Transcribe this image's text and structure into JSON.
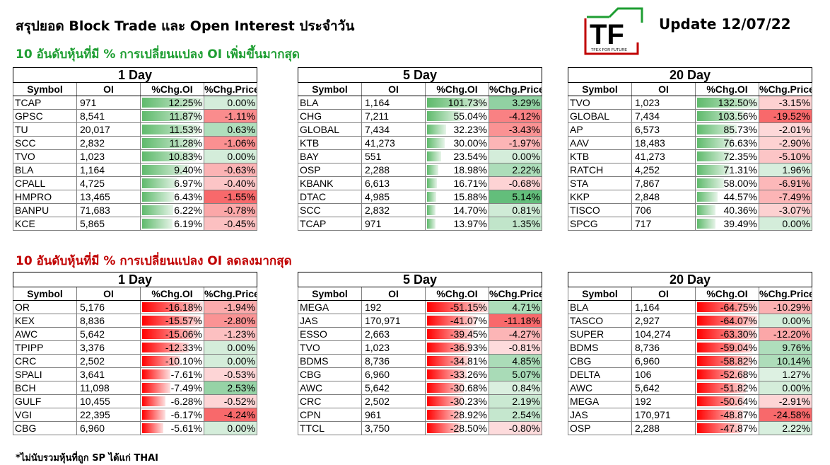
{
  "header": {
    "title": "สรุปยอด Block Trade และ Open Interest ประจำวัน",
    "update": "Update 12/07/22",
    "logo_letters": "TF",
    "logo_tagline": "TFEX FOR FUTURE"
  },
  "sections": {
    "increase_title": "10 อันดับหุ้นที่มี % การเปลี่ยนแปลง OI เพิ่มขึ้นมากสุด",
    "decrease_title": "10 อันดับหุ้นที่มี % การเปลี่ยนแปลง OI ลดลงมากสุด"
  },
  "footnote": "*ไม่นับรวมหุ้นที่ถูก SP ได้แก่ THAI",
  "colors": {
    "increase": "#1e9e32",
    "decrease": "#c00000",
    "bar_positive": "#5fba6c",
    "bar_negative": "#ff0000",
    "price_up": "#63be7b",
    "price_down": "#f8696b"
  },
  "columns": [
    "Symbol",
    "OI",
    "%Chg.OI",
    "%Chg.Price"
  ],
  "tables": [
    {
      "period": "1 Day",
      "group": "increase",
      "rows": [
        {
          "symbol": "TCAP",
          "oi": "971",
          "chg_oi": "12.25%",
          "chg_price": "0.00%",
          "oi_pct": 12.25,
          "price_pct": 0.0
        },
        {
          "symbol": "GPSC",
          "oi": "8,541",
          "chg_oi": "11.87%",
          "chg_price": "-1.11%",
          "oi_pct": 11.87,
          "price_pct": -1.11
        },
        {
          "symbol": "TU",
          "oi": "20,017",
          "chg_oi": "11.53%",
          "chg_price": "0.63%",
          "oi_pct": 11.53,
          "price_pct": 0.63
        },
        {
          "symbol": "SCC",
          "oi": "2,832",
          "chg_oi": "11.28%",
          "chg_price": "-1.06%",
          "oi_pct": 11.28,
          "price_pct": -1.06
        },
        {
          "symbol": "TVO",
          "oi": "1,023",
          "chg_oi": "10.83%",
          "chg_price": "0.00%",
          "oi_pct": 10.83,
          "price_pct": 0.0
        },
        {
          "symbol": "BLA",
          "oi": "1,164",
          "chg_oi": "9.40%",
          "chg_price": "-0.63%",
          "oi_pct": 9.4,
          "price_pct": -0.63
        },
        {
          "symbol": "CPALL",
          "oi": "4,725",
          "chg_oi": "6.97%",
          "chg_price": "-0.40%",
          "oi_pct": 6.97,
          "price_pct": -0.4
        },
        {
          "symbol": "HMPRO",
          "oi": "13,465",
          "chg_oi": "6.43%",
          "chg_price": "-1.55%",
          "oi_pct": 6.43,
          "price_pct": -1.55
        },
        {
          "symbol": "BANPU",
          "oi": "71,683",
          "chg_oi": "6.22%",
          "chg_price": "-0.78%",
          "oi_pct": 6.22,
          "price_pct": -0.78
        },
        {
          "symbol": "KCE",
          "oi": "5,865",
          "chg_oi": "6.19%",
          "chg_price": "-0.45%",
          "oi_pct": 6.19,
          "price_pct": -0.45
        }
      ]
    },
    {
      "period": "5 Day",
      "group": "increase",
      "rows": [
        {
          "symbol": "BLA",
          "oi": "1,164",
          "chg_oi": "101.73%",
          "chg_price": "3.29%",
          "oi_pct": 101.73,
          "price_pct": 3.29
        },
        {
          "symbol": "CHG",
          "oi": "7,211",
          "chg_oi": "55.04%",
          "chg_price": "-4.12%",
          "oi_pct": 55.04,
          "price_pct": -4.12
        },
        {
          "symbol": "GLOBAL",
          "oi": "7,434",
          "chg_oi": "32.23%",
          "chg_price": "-3.43%",
          "oi_pct": 32.23,
          "price_pct": -3.43
        },
        {
          "symbol": "KTB",
          "oi": "41,273",
          "chg_oi": "30.00%",
          "chg_price": "-1.97%",
          "oi_pct": 30.0,
          "price_pct": -1.97
        },
        {
          "symbol": "BAY",
          "oi": "551",
          "chg_oi": "23.54%",
          "chg_price": "0.00%",
          "oi_pct": 23.54,
          "price_pct": 0.0
        },
        {
          "symbol": "OSP",
          "oi": "2,288",
          "chg_oi": "18.98%",
          "chg_price": "2.22%",
          "oi_pct": 18.98,
          "price_pct": 2.22
        },
        {
          "symbol": "KBANK",
          "oi": "6,613",
          "chg_oi": "16.71%",
          "chg_price": "-0.68%",
          "oi_pct": 16.71,
          "price_pct": -0.68
        },
        {
          "symbol": "DTAC",
          "oi": "4,985",
          "chg_oi": "15.88%",
          "chg_price": "5.14%",
          "oi_pct": 15.88,
          "price_pct": 5.14
        },
        {
          "symbol": "SCC",
          "oi": "2,832",
          "chg_oi": "14.70%",
          "chg_price": "0.81%",
          "oi_pct": 14.7,
          "price_pct": 0.81
        },
        {
          "symbol": "TCAP",
          "oi": "971",
          "chg_oi": "13.97%",
          "chg_price": "1.35%",
          "oi_pct": 13.97,
          "price_pct": 1.35
        }
      ]
    },
    {
      "period": "20 Day",
      "group": "increase",
      "rows": [
        {
          "symbol": "TVO",
          "oi": "1,023",
          "chg_oi": "132.50%",
          "chg_price": "-3.15%",
          "oi_pct": 132.5,
          "price_pct": -3.15
        },
        {
          "symbol": "GLOBAL",
          "oi": "7,434",
          "chg_oi": "103.56%",
          "chg_price": "-19.52%",
          "oi_pct": 103.56,
          "price_pct": -19.52
        },
        {
          "symbol": "AP",
          "oi": "6,573",
          "chg_oi": "85.73%",
          "chg_price": "-2.01%",
          "oi_pct": 85.73,
          "price_pct": -2.01
        },
        {
          "symbol": "AAV",
          "oi": "18,483",
          "chg_oi": "76.63%",
          "chg_price": "-2.90%",
          "oi_pct": 76.63,
          "price_pct": -2.9
        },
        {
          "symbol": "KTB",
          "oi": "41,273",
          "chg_oi": "72.35%",
          "chg_price": "-5.10%",
          "oi_pct": 72.35,
          "price_pct": -5.1
        },
        {
          "symbol": "RATCH",
          "oi": "4,252",
          "chg_oi": "71.31%",
          "chg_price": "1.96%",
          "oi_pct": 71.31,
          "price_pct": 1.96
        },
        {
          "symbol": "STA",
          "oi": "7,867",
          "chg_oi": "58.00%",
          "chg_price": "-6.91%",
          "oi_pct": 58.0,
          "price_pct": -6.91
        },
        {
          "symbol": "KKP",
          "oi": "2,848",
          "chg_oi": "44.57%",
          "chg_price": "-7.49%",
          "oi_pct": 44.57,
          "price_pct": -7.49
        },
        {
          "symbol": "TISCO",
          "oi": "706",
          "chg_oi": "40.36%",
          "chg_price": "-3.07%",
          "oi_pct": 40.36,
          "price_pct": -3.07
        },
        {
          "symbol": "SPCG",
          "oi": "717",
          "chg_oi": "39.49%",
          "chg_price": "0.00%",
          "oi_pct": 39.49,
          "price_pct": 0.0
        }
      ]
    },
    {
      "period": "1 Day",
      "group": "decrease",
      "rows": [
        {
          "symbol": "OR",
          "oi": "5,176",
          "chg_oi": "-16.18%",
          "chg_price": "-1.94%",
          "oi_pct": -16.18,
          "price_pct": -1.94
        },
        {
          "symbol": "KEX",
          "oi": "8,836",
          "chg_oi": "-15.57%",
          "chg_price": "-2.80%",
          "oi_pct": -15.57,
          "price_pct": -2.8
        },
        {
          "symbol": "AWC",
          "oi": "5,642",
          "chg_oi": "-15.06%",
          "chg_price": "-1.23%",
          "oi_pct": -15.06,
          "price_pct": -1.23
        },
        {
          "symbol": "TPIPP",
          "oi": "3,376",
          "chg_oi": "-12.33%",
          "chg_price": "0.00%",
          "oi_pct": -12.33,
          "price_pct": 0.0
        },
        {
          "symbol": "CRC",
          "oi": "2,502",
          "chg_oi": "-10.10%",
          "chg_price": "0.00%",
          "oi_pct": -10.1,
          "price_pct": 0.0
        },
        {
          "symbol": "SPALI",
          "oi": "3,641",
          "chg_oi": "-7.61%",
          "chg_price": "-0.53%",
          "oi_pct": -7.61,
          "price_pct": -0.53
        },
        {
          "symbol": "BCH",
          "oi": "11,098",
          "chg_oi": "-7.49%",
          "chg_price": "2.53%",
          "oi_pct": -7.49,
          "price_pct": 2.53
        },
        {
          "symbol": "GULF",
          "oi": "10,455",
          "chg_oi": "-6.28%",
          "chg_price": "-0.52%",
          "oi_pct": -6.28,
          "price_pct": -0.52
        },
        {
          "symbol": "VGI",
          "oi": "22,395",
          "chg_oi": "-6.17%",
          "chg_price": "-4.24%",
          "oi_pct": -6.17,
          "price_pct": -4.24
        },
        {
          "symbol": "CBG",
          "oi": "6,960",
          "chg_oi": "-5.61%",
          "chg_price": "0.00%",
          "oi_pct": -5.61,
          "price_pct": 0.0
        }
      ]
    },
    {
      "period": "5 Day",
      "group": "decrease",
      "rows": [
        {
          "symbol": "MEGA",
          "oi": "192",
          "chg_oi": "-51.15%",
          "chg_price": "4.71%",
          "oi_pct": -51.15,
          "price_pct": 4.71
        },
        {
          "symbol": "JAS",
          "oi": "170,971",
          "chg_oi": "-41.07%",
          "chg_price": "-11.18%",
          "oi_pct": -41.07,
          "price_pct": -11.18
        },
        {
          "symbol": "ESSO",
          "oi": "2,663",
          "chg_oi": "-39.45%",
          "chg_price": "-4.27%",
          "oi_pct": -39.45,
          "price_pct": -4.27
        },
        {
          "symbol": "TVO",
          "oi": "1,023",
          "chg_oi": "-36.93%",
          "chg_price": "-0.81%",
          "oi_pct": -36.93,
          "price_pct": -0.81
        },
        {
          "symbol": "BDMS",
          "oi": "8,736",
          "chg_oi": "-34.81%",
          "chg_price": "4.85%",
          "oi_pct": -34.81,
          "price_pct": 4.85
        },
        {
          "symbol": "CBG",
          "oi": "6,960",
          "chg_oi": "-33.26%",
          "chg_price": "5.07%",
          "oi_pct": -33.26,
          "price_pct": 5.07
        },
        {
          "symbol": "AWC",
          "oi": "5,642",
          "chg_oi": "-30.68%",
          "chg_price": "0.84%",
          "oi_pct": -30.68,
          "price_pct": 0.84
        },
        {
          "symbol": "CRC",
          "oi": "2,502",
          "chg_oi": "-30.23%",
          "chg_price": "2.19%",
          "oi_pct": -30.23,
          "price_pct": 2.19
        },
        {
          "symbol": "CPN",
          "oi": "961",
          "chg_oi": "-28.92%",
          "chg_price": "2.54%",
          "oi_pct": -28.92,
          "price_pct": 2.54
        },
        {
          "symbol": "TTCL",
          "oi": "3,750",
          "chg_oi": "-28.50%",
          "chg_price": "-0.80%",
          "oi_pct": -28.5,
          "price_pct": -0.8
        }
      ]
    },
    {
      "period": "20 Day",
      "group": "decrease",
      "rows": [
        {
          "symbol": "BLA",
          "oi": "1,164",
          "chg_oi": "-64.75%",
          "chg_price": "-10.29%",
          "oi_pct": -64.75,
          "price_pct": -10.29
        },
        {
          "symbol": "TASCO",
          "oi": "2,927",
          "chg_oi": "-64.07%",
          "chg_price": "0.00%",
          "oi_pct": -64.07,
          "price_pct": 0.0
        },
        {
          "symbol": "SUPER",
          "oi": "104,274",
          "chg_oi": "-63.30%",
          "chg_price": "-12.20%",
          "oi_pct": -63.3,
          "price_pct": -12.2
        },
        {
          "symbol": "BDMS",
          "oi": "8,736",
          "chg_oi": "-59.04%",
          "chg_price": "9.76%",
          "oi_pct": -59.04,
          "price_pct": 9.76
        },
        {
          "symbol": "CBG",
          "oi": "6,960",
          "chg_oi": "-58.82%",
          "chg_price": "10.14%",
          "oi_pct": -58.82,
          "price_pct": 10.14
        },
        {
          "symbol": "DELTA",
          "oi": "106",
          "chg_oi": "-52.68%",
          "chg_price": "1.27%",
          "oi_pct": -52.68,
          "price_pct": 1.27
        },
        {
          "symbol": "AWC",
          "oi": "5,642",
          "chg_oi": "-51.82%",
          "chg_price": "0.00%",
          "oi_pct": -51.82,
          "price_pct": 0.0
        },
        {
          "symbol": "MEGA",
          "oi": "192",
          "chg_oi": "-50.64%",
          "chg_price": "-2.91%",
          "oi_pct": -50.64,
          "price_pct": -2.91
        },
        {
          "symbol": "JAS",
          "oi": "170,971",
          "chg_oi": "-48.87%",
          "chg_price": "-24.58%",
          "oi_pct": -48.87,
          "price_pct": -24.58
        },
        {
          "symbol": "OSP",
          "oi": "2,288",
          "chg_oi": "-47.87%",
          "chg_price": "2.22%",
          "oi_pct": -47.87,
          "price_pct": 2.22
        }
      ]
    }
  ]
}
